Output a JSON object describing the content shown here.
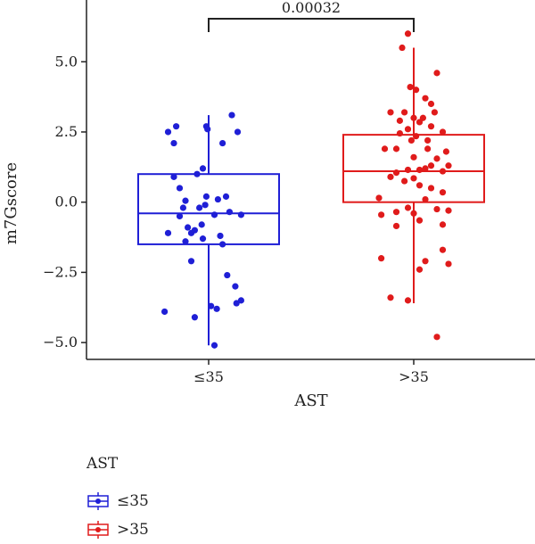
{
  "chart_data": {
    "type": "box",
    "xlabel": "AST",
    "ylabel": "m7Gscore",
    "ylim": [
      -5.6,
      7.2
    ],
    "yticks": [
      5.0,
      2.5,
      0.0,
      -2.5,
      -5.0
    ],
    "ytick_labels": [
      "5.0",
      "2.5",
      "0.0",
      "−2.5",
      "−5.0"
    ],
    "categories": [
      "≤35",
      ">35"
    ],
    "boxes": [
      {
        "group": "≤35",
        "color": "#1f1fd6",
        "whisker_low": -5.1,
        "q1": -1.5,
        "median": -0.4,
        "q3": 1.0,
        "whisker_high": 3.1,
        "points": [
          [
            -0.35,
            2.5
          ],
          [
            -0.28,
            2.7
          ],
          [
            -0.3,
            2.1
          ],
          [
            -0.02,
            2.7
          ],
          [
            -0.01,
            2.6
          ],
          [
            0.12,
            2.1
          ],
          [
            0.2,
            3.1
          ],
          [
            0.25,
            2.5
          ],
          [
            -0.3,
            0.9
          ],
          [
            -0.25,
            0.5
          ],
          [
            -0.05,
            1.2
          ],
          [
            -0.1,
            1.0
          ],
          [
            -0.2,
            0.05
          ],
          [
            -0.02,
            0.2
          ],
          [
            0.08,
            0.1
          ],
          [
            0.15,
            0.2
          ],
          [
            -0.22,
            -0.2
          ],
          [
            -0.08,
            -0.2
          ],
          [
            -0.03,
            -0.1
          ],
          [
            -0.25,
            -0.5
          ],
          [
            0.05,
            -0.45
          ],
          [
            0.18,
            -0.35
          ],
          [
            0.28,
            -0.45
          ],
          [
            -0.18,
            -0.9
          ],
          [
            -0.12,
            -1.0
          ],
          [
            -0.06,
            -0.8
          ],
          [
            -0.35,
            -1.1
          ],
          [
            -0.15,
            -1.1
          ],
          [
            -0.05,
            -1.3
          ],
          [
            -0.2,
            -1.4
          ],
          [
            0.1,
            -1.2
          ],
          [
            0.12,
            -1.5
          ],
          [
            -0.15,
            -2.1
          ],
          [
            0.16,
            -2.6
          ],
          [
            0.23,
            -3.0
          ],
          [
            0.28,
            -3.5
          ],
          [
            0.24,
            -3.6
          ],
          [
            -0.38,
            -3.9
          ],
          [
            -0.12,
            -4.1
          ],
          [
            0.02,
            -3.7
          ],
          [
            0.07,
            -3.8
          ],
          [
            0.05,
            -5.1
          ]
        ]
      },
      {
        "group": ">35",
        "color": "#e01b1b",
        "whisker_low": -3.6,
        "q1": 0.0,
        "median": 1.1,
        "q3": 2.4,
        "whisker_high": 5.5,
        "points": [
          [
            -0.05,
            6.0
          ],
          [
            -0.1,
            5.5
          ],
          [
            0.2,
            4.6
          ],
          [
            -0.03,
            4.1
          ],
          [
            0.02,
            4.0
          ],
          [
            0.1,
            3.7
          ],
          [
            0.15,
            3.5
          ],
          [
            -0.2,
            3.2
          ],
          [
            -0.08,
            3.2
          ],
          [
            0.08,
            3.0
          ],
          [
            0.0,
            3.0
          ],
          [
            0.18,
            3.2
          ],
          [
            -0.12,
            2.9
          ],
          [
            0.05,
            2.85
          ],
          [
            0.15,
            2.7
          ],
          [
            -0.05,
            2.6
          ],
          [
            -0.12,
            2.45
          ],
          [
            0.25,
            2.5
          ],
          [
            0.02,
            2.35
          ],
          [
            0.12,
            2.2
          ],
          [
            -0.02,
            2.2
          ],
          [
            -0.25,
            1.9
          ],
          [
            -0.15,
            1.9
          ],
          [
            0.12,
            1.9
          ],
          [
            0.28,
            1.8
          ],
          [
            0.0,
            1.6
          ],
          [
            0.2,
            1.55
          ],
          [
            0.15,
            1.3
          ],
          [
            -0.05,
            1.15
          ],
          [
            0.05,
            1.15
          ],
          [
            0.1,
            1.2
          ],
          [
            -0.15,
            1.05
          ],
          [
            0.25,
            1.1
          ],
          [
            0.3,
            1.3
          ],
          [
            -0.2,
            0.9
          ],
          [
            0.0,
            0.85
          ],
          [
            -0.08,
            0.75
          ],
          [
            0.05,
            0.6
          ],
          [
            0.15,
            0.5
          ],
          [
            0.25,
            0.35
          ],
          [
            -0.3,
            0.15
          ],
          [
            0.1,
            0.1
          ],
          [
            -0.05,
            -0.2
          ],
          [
            -0.15,
            -0.35
          ],
          [
            0.0,
            -0.4
          ],
          [
            0.2,
            -0.25
          ],
          [
            0.3,
            -0.3
          ],
          [
            -0.28,
            -0.45
          ],
          [
            0.05,
            -0.65
          ],
          [
            -0.15,
            -0.85
          ],
          [
            0.25,
            -0.8
          ],
          [
            0.25,
            -1.7
          ],
          [
            -0.28,
            -2.0
          ],
          [
            0.1,
            -2.1
          ],
          [
            0.05,
            -2.4
          ],
          [
            0.3,
            -2.2
          ],
          [
            -0.2,
            -3.4
          ],
          [
            -0.05,
            -3.5
          ],
          [
            0.2,
            -4.8
          ]
        ]
      }
    ],
    "annotation": {
      "text": "0.00032",
      "between": [
        "≤35",
        ">35"
      ]
    },
    "legend": {
      "title": "AST",
      "placement": "bottom-left"
    }
  }
}
